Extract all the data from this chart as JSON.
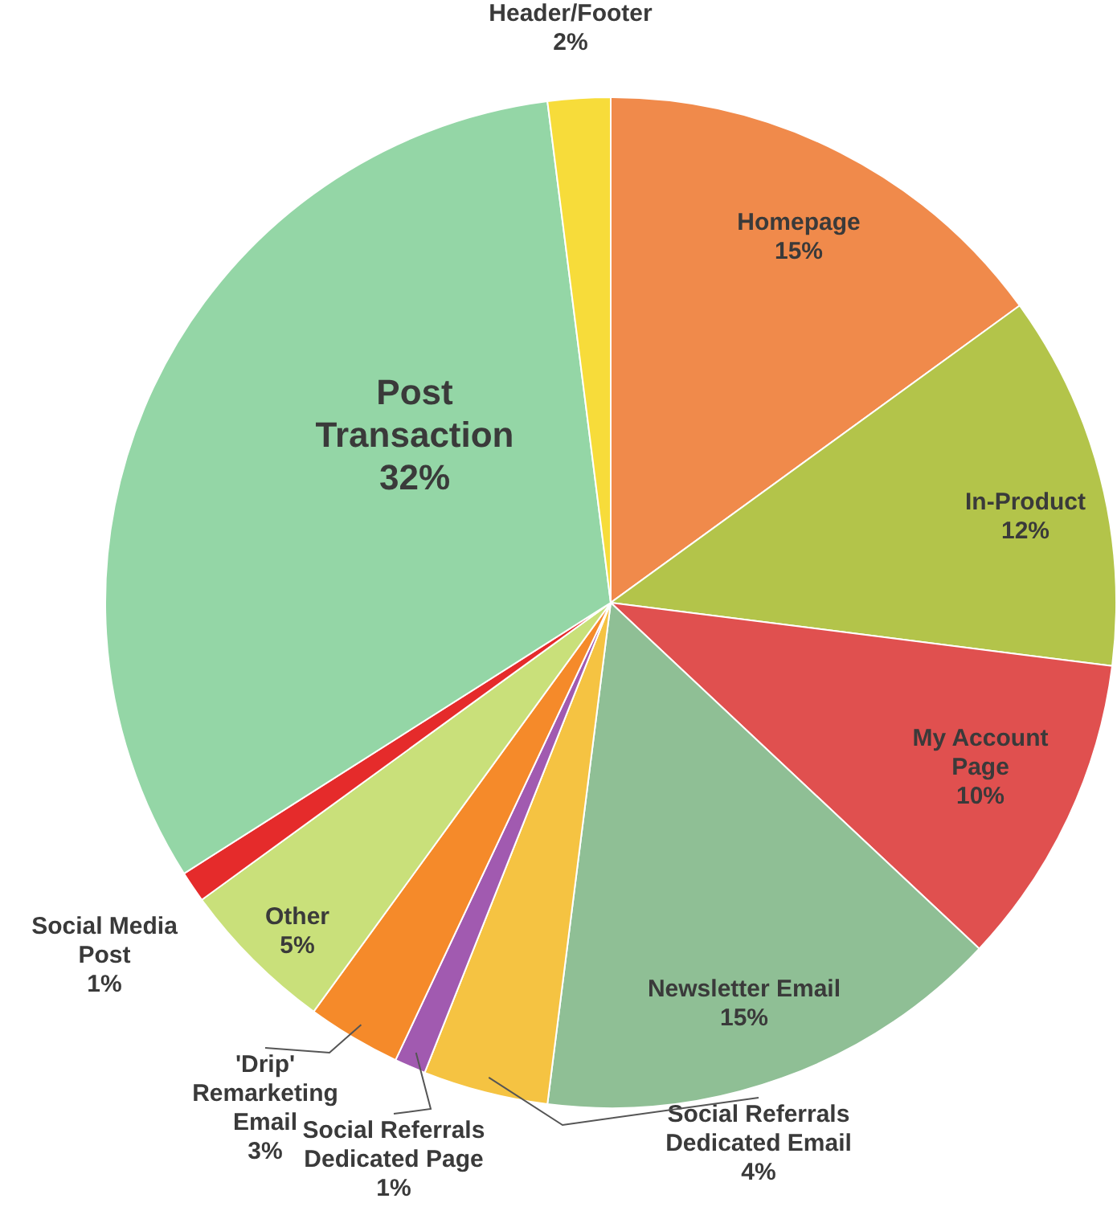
{
  "chart_data": {
    "type": "pie",
    "categories": [
      "Homepage",
      "In-Product",
      "My Account Page",
      "Newsletter Email",
      "Social Referrals Dedicated Email",
      "Social Referrals Dedicated Page",
      "'Drip' Remarketing Email",
      "Other",
      "Social Media Post",
      "Post Transaction",
      "Header/Footer"
    ],
    "values": [
      15,
      12,
      10,
      15,
      4,
      1,
      3,
      5,
      1,
      32,
      2
    ],
    "colors": [
      "#f08a4b",
      "#b3c44a",
      "#e0504f",
      "#8fbf95",
      "#f5c342",
      "#a15ab0",
      "#f58a2a",
      "#c9e07a",
      "#e52b2b",
      "#94d6a6",
      "#f7dc3a"
    ],
    "value_labels": [
      "15%",
      "12%",
      "10%",
      "15%",
      "4%",
      "1%",
      "3%",
      "5%",
      "1%",
      "32%",
      "2%"
    ],
    "legend": false
  }
}
